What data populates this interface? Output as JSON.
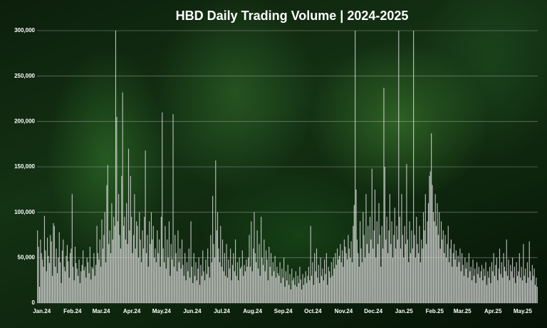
{
  "chart_data": {
    "type": "bar",
    "title": "HBD Daily Trading Volume | 2024-2025",
    "color": "#dcdcdc",
    "grid": true,
    "ylim": [
      0,
      300000
    ],
    "yticks": [
      0,
      {
        "value": 50000,
        "label": "50,000"
      },
      {
        "value": 100000,
        "label": "100,000"
      },
      {
        "value": 150000,
        "label": "150,000"
      },
      {
        "value": 200000,
        "label": "200,000"
      },
      {
        "value": 250000,
        "label": "250,000"
      },
      {
        "value": 300000,
        "label": "300,000"
      }
    ],
    "categories": [
      "Jan.24",
      null,
      null,
      null,
      null,
      null,
      null,
      null,
      null,
      null,
      null,
      null,
      null,
      null,
      null,
      null,
      null,
      null,
      null,
      null,
      null,
      null,
      null,
      null,
      null,
      null,
      null,
      null,
      null,
      null,
      null,
      "Feb.24",
      null,
      null,
      null,
      null,
      null,
      null,
      null,
      null,
      null,
      null,
      null,
      null,
      null,
      null,
      null,
      null,
      null,
      null,
      null,
      null,
      null,
      null,
      null,
      null,
      null,
      null,
      null,
      null,
      "Mar.24",
      null,
      null,
      null,
      null,
      null,
      null,
      null,
      null,
      null,
      null,
      null,
      null,
      null,
      null,
      null,
      null,
      null,
      null,
      null,
      null,
      null,
      null,
      null,
      null,
      null,
      null,
      null,
      null,
      null,
      null,
      "Apr.24",
      null,
      null,
      null,
      null,
      null,
      null,
      null,
      null,
      null,
      null,
      null,
      null,
      null,
      null,
      null,
      null,
      null,
      null,
      null,
      null,
      null,
      null,
      null,
      null,
      null,
      null,
      null,
      null,
      null,
      "May.24",
      null,
      null,
      null,
      null,
      null,
      null,
      null,
      null,
      null,
      null,
      null,
      null,
      null,
      null,
      null,
      null,
      null,
      null,
      null,
      null,
      null,
      null,
      null,
      null,
      null,
      null,
      null,
      null,
      null,
      null,
      "Jun.24",
      null,
      null,
      null,
      null,
      null,
      null,
      null,
      null,
      null,
      null,
      null,
      null,
      null,
      null,
      null,
      null,
      null,
      null,
      null,
      null,
      null,
      null,
      null,
      null,
      null,
      null,
      null,
      null,
      null,
      "Jul.24",
      null,
      null,
      null,
      null,
      null,
      null,
      null,
      null,
      null,
      null,
      null,
      null,
      null,
      null,
      null,
      null,
      null,
      null,
      null,
      null,
      null,
      null,
      null,
      null,
      null,
      null,
      null,
      null,
      null,
      null,
      "Aug.24",
      null,
      null,
      null,
      null,
      null,
      null,
      null,
      null,
      null,
      null,
      null,
      null,
      null,
      null,
      null,
      null,
      null,
      null,
      null,
      null,
      null,
      null,
      null,
      null,
      null,
      null,
      null,
      null,
      null,
      null,
      "Sep.24",
      null,
      null,
      null,
      null,
      null,
      null,
      null,
      null,
      null,
      null,
      null,
      null,
      null,
      null,
      null,
      null,
      null,
      null,
      null,
      null,
      null,
      null,
      null,
      null,
      null,
      null,
      null,
      null,
      null,
      "Oct.24",
      null,
      null,
      null,
      null,
      null,
      null,
      null,
      null,
      null,
      null,
      null,
      null,
      null,
      null,
      null,
      null,
      null,
      null,
      null,
      null,
      null,
      null,
      null,
      null,
      null,
      null,
      null,
      null,
      null,
      null,
      "Nov.24",
      null,
      null,
      null,
      null,
      null,
      null,
      null,
      null,
      null,
      null,
      null,
      null,
      null,
      null,
      null,
      null,
      null,
      null,
      null,
      null,
      null,
      null,
      null,
      null,
      null,
      null,
      null,
      null,
      null,
      "Dec.24",
      null,
      null,
      null,
      null,
      null,
      null,
      null,
      null,
      null,
      null,
      null,
      null,
      null,
      null,
      null,
      null,
      null,
      null,
      null,
      null,
      null,
      null,
      null,
      null,
      null,
      null,
      null,
      null,
      null,
      null,
      "Jan.25",
      null,
      null,
      null,
      null,
      null,
      null,
      null,
      null,
      null,
      null,
      null,
      null,
      null,
      null,
      null,
      null,
      null,
      null,
      null,
      null,
      null,
      null,
      null,
      null,
      null,
      null,
      null,
      null,
      null,
      null,
      "Feb.25",
      null,
      null,
      null,
      null,
      null,
      null,
      null,
      null,
      null,
      null,
      null,
      null,
      null,
      null,
      null,
      null,
      null,
      null,
      null,
      null,
      null,
      null,
      null,
      null,
      null,
      null,
      null,
      "Mar.25",
      null,
      null,
      null,
      null,
      null,
      null,
      null,
      null,
      null,
      null,
      null,
      null,
      null,
      null,
      null,
      null,
      null,
      null,
      null,
      null,
      null,
      null,
      null,
      null,
      null,
      null,
      null,
      null,
      null,
      null,
      "Apr.25",
      null,
      null,
      null,
      null,
      null,
      null,
      null,
      null,
      null,
      null,
      null,
      null,
      null,
      null,
      null,
      null,
      null,
      null,
      null,
      null,
      null,
      null,
      null,
      null,
      null,
      null,
      null,
      null,
      null,
      "May.25",
      null,
      null,
      null,
      null,
      null,
      null,
      null,
      null,
      null,
      null,
      null,
      null,
      null,
      null,
      null,
      null,
      null,
      null,
      null
    ],
    "values": [
      80000,
      62000,
      18000,
      70000,
      55000,
      48000,
      40000,
      96000,
      58000,
      35000,
      72000,
      52000,
      44000,
      75000,
      68000,
      30000,
      88000,
      85000,
      40000,
      60000,
      33000,
      50000,
      78000,
      45000,
      22000,
      58000,
      70000,
      40000,
      35000,
      52000,
      64000,
      46000,
      28000,
      55000,
      60000,
      120000,
      40000,
      25000,
      62000,
      44000,
      38000,
      30000,
      48000,
      22000,
      35000,
      42000,
      58000,
      36000,
      40000,
      28000,
      50000,
      45000,
      33000,
      62000,
      26000,
      40000,
      38000,
      55000,
      30000,
      42000,
      85000,
      55000,
      48000,
      70000,
      40000,
      92000,
      60000,
      75000,
      100000,
      45000,
      130000,
      152000,
      65000,
      80000,
      55000,
      110000,
      70000,
      95000,
      85000,
      300000,
      205000,
      90000,
      120000,
      75000,
      60000,
      140000,
      232000,
      85000,
      95000,
      70000,
      110000,
      65000,
      170000,
      80000,
      140000,
      95000,
      55000,
      75000,
      120000,
      60000,
      90000,
      85000,
      50000,
      100000,
      70000,
      45000,
      80000,
      60000,
      95000,
      168000,
      55000,
      75000,
      40000,
      90000,
      65000,
      100000,
      70000,
      85000,
      50000,
      60000,
      45000,
      80000,
      55000,
      70000,
      40000,
      95000,
      210000,
      60000,
      45000,
      85000,
      38000,
      70000,
      50000,
      90000,
      30000,
      65000,
      48000,
      208000,
      40000,
      75000,
      55000,
      35000,
      80000,
      45000,
      60000,
      38000,
      70000,
      42000,
      30000,
      55000,
      25000,
      45000,
      35000,
      60000,
      28000,
      90000,
      40000,
      22000,
      55000,
      30000,
      45000,
      25000,
      38000,
      50000,
      20000,
      42000,
      30000,
      58000,
      35000,
      25000,
      48000,
      32000,
      60000,
      40000,
      28000,
      75000,
      45000,
      118000,
      65000,
      50000,
      157000,
      80000,
      100000,
      60000,
      45000,
      85000,
      40000,
      70000,
      35000,
      55000,
      30000,
      65000,
      28000,
      48000,
      38000,
      60000,
      25000,
      42000,
      55000,
      35000,
      70000,
      30000,
      45000,
      25000,
      50000,
      38000,
      40000,
      58000,
      30000,
      42000,
      35000,
      48000,
      40000,
      50000,
      75000,
      40000,
      90000,
      35000,
      60000,
      100000,
      55000,
      45000,
      80000,
      38000,
      65000,
      30000,
      95000,
      50000,
      42000,
      70000,
      35000,
      58000,
      48000,
      25000,
      62000,
      40000,
      55000,
      30000,
      45000,
      35000,
      52000,
      28000,
      40000,
      33000,
      30000,
      45000,
      22000,
      38000,
      28000,
      50000,
      18000,
      35000,
      25000,
      42000,
      20000,
      32000,
      15000,
      38000,
      25000,
      28000,
      20000,
      35000,
      18000,
      30000,
      22000,
      40000,
      26000,
      15000,
      32000,
      20000,
      28000,
      35000,
      22000,
      30000,
      40000,
      25000,
      85000,
      30000,
      45000,
      20000,
      55000,
      35000,
      60000,
      28000,
      42000,
      22000,
      50000,
      30000,
      38000,
      25000,
      48000,
      32000,
      55000,
      20000,
      40000,
      35000,
      28000,
      45000,
      30000,
      50000,
      38000,
      55000,
      42000,
      60000,
      48000,
      52000,
      65000,
      45000,
      58000,
      40000,
      70000,
      62000,
      55000,
      48000,
      75000,
      60000,
      50000,
      68000,
      45000,
      85000,
      108000,
      300000,
      125000,
      70000,
      55000,
      40000,
      90000,
      60000,
      45000,
      100000,
      75000,
      50000,
      120000,
      65000,
      85000,
      55000,
      95000,
      70000,
      148000,
      60000,
      80000,
      125000,
      50000,
      90000,
      65000,
      110000,
      75000,
      40000,
      85000,
      60000,
      237000,
      150000,
      70000,
      95000,
      55000,
      80000,
      120000,
      65000,
      90000,
      50000,
      75000,
      105000,
      60000,
      85000,
      70000,
      300000,
      95000,
      60000,
      120000,
      75000,
      50000,
      85000,
      65000,
      153000,
      70000,
      45000,
      90000,
      55000,
      80000,
      60000,
      300000,
      75000,
      50000,
      95000,
      65000,
      55000,
      85000,
      45000,
      70000,
      60000,
      100000,
      80000,
      120000,
      65000,
      90000,
      110000,
      140000,
      145000,
      187000,
      130000,
      100000,
      90000,
      120000,
      85000,
      110000,
      75000,
      100000,
      60000,
      90000,
      70000,
      80000,
      55000,
      75000,
      50000,
      65000,
      85000,
      45000,
      60000,
      70000,
      40000,
      55000,
      65000,
      48000,
      58000,
      40000,
      52000,
      45000,
      60000,
      35000,
      55000,
      42000,
      30000,
      50000,
      38000,
      45000,
      28000,
      55000,
      35000,
      40000,
      25000,
      48000,
      30000,
      38000,
      22000,
      45000,
      32000,
      40000,
      28000,
      35000,
      42000,
      25000,
      38000,
      30000,
      45000,
      20000,
      35000,
      28000,
      40000,
      22000,
      45000,
      35000,
      55000,
      30000,
      42000,
      50000,
      25000,
      38000,
      60000,
      32000,
      45000,
      28000,
      55000,
      40000,
      35000,
      70000,
      30000,
      48000,
      25000,
      42000,
      35000,
      50000,
      28000,
      40000,
      22000,
      45000,
      30000,
      35000,
      55000,
      28000,
      40000,
      25000,
      65000,
      30000,
      38000,
      22000,
      45000,
      28000,
      68000,
      35000,
      25000,
      42000,
      30000,
      38000,
      20000,
      28000,
      18000
    ]
  }
}
